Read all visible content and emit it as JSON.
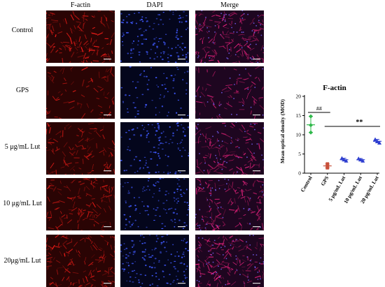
{
  "figure": {
    "columns": [
      "F-actin",
      "DAPI",
      "Merge"
    ],
    "rows": [
      "Control",
      "GPS",
      "5 μg/mL Lut",
      "10 μg/mL Lut",
      "20μg/mL Lut"
    ]
  },
  "chart_data": {
    "type": "scatter",
    "title": "F-actin",
    "ylabel": "Mean optical density (MOD)",
    "xlabel": "",
    "ylim": [
      0,
      20
    ],
    "yticks": [
      0,
      5,
      10,
      15,
      20
    ],
    "grid": false,
    "categories": [
      "Control",
      "GPS",
      "5 μg/mL Lut",
      "10 μg/mL Lut",
      "20 μg/mL Lut"
    ],
    "series": [
      {
        "category": "Control",
        "points": [
          14.8,
          12.5,
          10.6
        ],
        "mean": 12.6,
        "marker": "diamond",
        "color": "#2fb84a"
      },
      {
        "category": "GPS",
        "points": [
          2.4,
          1.9,
          1.4
        ],
        "mean": 1.9,
        "marker": "square",
        "color": "#c8503a"
      },
      {
        "category": "5 μg/mL Lut",
        "points": [
          3.9,
          3.5,
          3.2
        ],
        "mean": 3.5,
        "marker": "triangle",
        "color": "#2f3fd0"
      },
      {
        "category": "10 μg/mL Lut",
        "points": [
          3.8,
          3.5,
          3.2
        ],
        "mean": 3.5,
        "marker": "triangle",
        "color": "#2f3fd0"
      },
      {
        "category": "20 μg/mL Lut",
        "points": [
          8.8,
          8.3,
          7.9
        ],
        "mean": 8.3,
        "marker": "triangle",
        "color": "#2f3fd0"
      }
    ],
    "annotations": [
      {
        "text": "##",
        "from": "Control",
        "to": "GPS"
      },
      {
        "text": "**",
        "from": "GPS",
        "to": "20 μg/mL Lut"
      }
    ]
  }
}
